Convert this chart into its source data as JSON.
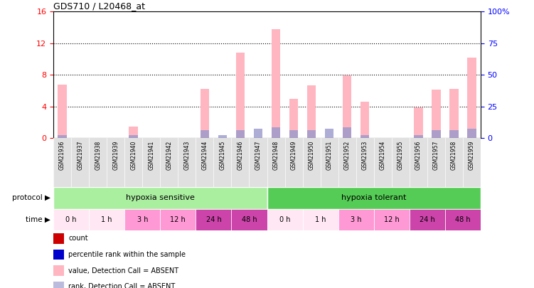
{
  "title": "GDS710 / L20468_at",
  "samples": [
    "GSM21936",
    "GSM21937",
    "GSM21938",
    "GSM21939",
    "GSM21940",
    "GSM21941",
    "GSM21942",
    "GSM21943",
    "GSM21944",
    "GSM21945",
    "GSM21946",
    "GSM21947",
    "GSM21948",
    "GSM21949",
    "GSM21950",
    "GSM21951",
    "GSM21952",
    "GSM21953",
    "GSM21954",
    "GSM21955",
    "GSM21956",
    "GSM21957",
    "GSM21958",
    "GSM21959"
  ],
  "pink_values": [
    6.8,
    0.0,
    0.0,
    0.0,
    1.5,
    0.0,
    0.0,
    0.0,
    6.2,
    0.0,
    10.8,
    0.0,
    13.8,
    5.0,
    6.7,
    0.0,
    7.9,
    4.6,
    0.0,
    0.0,
    3.9,
    6.1,
    6.2,
    10.2
  ],
  "blue_values": [
    0.4,
    0.0,
    0.0,
    0.0,
    0.4,
    0.0,
    0.0,
    0.0,
    1.0,
    0.4,
    1.0,
    1.2,
    1.4,
    1.0,
    1.0,
    1.2,
    1.4,
    0.4,
    0.0,
    0.0,
    0.4,
    1.0,
    1.0,
    1.2
  ],
  "ylim_left": [
    0,
    16
  ],
  "ylim_right": [
    0,
    100
  ],
  "yticks_left": [
    0,
    4,
    8,
    12,
    16
  ],
  "yticks_right": [
    0,
    25,
    50,
    75,
    100
  ],
  "bar_color_pink": "#FFB6C1",
  "bar_color_blue": "#9999CC",
  "bg_color": "white",
  "protocol_sensitive_color": "#AAEEA0",
  "protocol_tolerant_color": "#55CC55",
  "time_colors": [
    "#FFE8F4",
    "#FFE8F4",
    "#FF99D6",
    "#FF99D6",
    "#CC44AA",
    "#CC44AA",
    "#FFE8F4",
    "#FFE8F4",
    "#FF99D6",
    "#FF99D6",
    "#CC44AA",
    "#CC44AA"
  ],
  "time_labels": [
    "0 h",
    "1 h",
    "3 h",
    "12 h",
    "24 h",
    "48 h",
    "0 h",
    "1 h",
    "3 h",
    "12 h",
    "24 h",
    "48 h"
  ],
  "legend_items": [
    {
      "color": "#CC0000",
      "label": "count"
    },
    {
      "color": "#0000CC",
      "label": "percentile rank within the sample"
    },
    {
      "color": "#FFB6C1",
      "label": "value, Detection Call = ABSENT"
    },
    {
      "color": "#BBBBDD",
      "label": "rank, Detection Call = ABSENT"
    }
  ]
}
